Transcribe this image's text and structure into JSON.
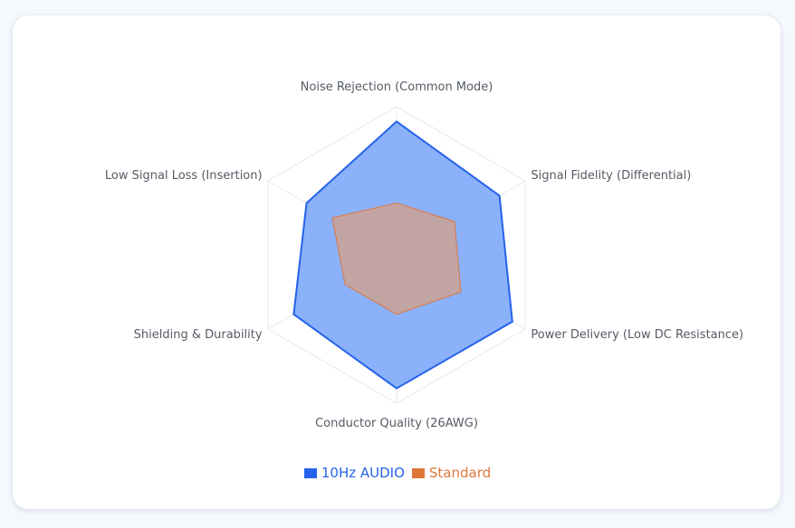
{
  "chart_data": {
    "type": "radar",
    "axes": [
      "Noise Rejection (Common Mode)",
      "Signal Fidelity (Differential)",
      "Power Delivery (Low DC Resistance)",
      "Conductor Quality (26AWG)",
      "Shielding & Durability",
      "Low Signal Loss (Insertion)"
    ],
    "range": [
      0,
      10
    ],
    "grid_levels": [
      5,
      10
    ],
    "grid": true,
    "legend_position": "bottom",
    "series": [
      {
        "name": "10Hz AUDIO",
        "values": [
          9,
          8,
          9,
          9,
          8,
          7
        ],
        "color": "#2563eb",
        "fill": "#8ab1f9"
      },
      {
        "name": "Standard",
        "values": [
          3.5,
          4.5,
          5,
          4,
          4,
          5
        ],
        "color": "#e0763a",
        "fill": "#c2a4a3"
      }
    ]
  }
}
